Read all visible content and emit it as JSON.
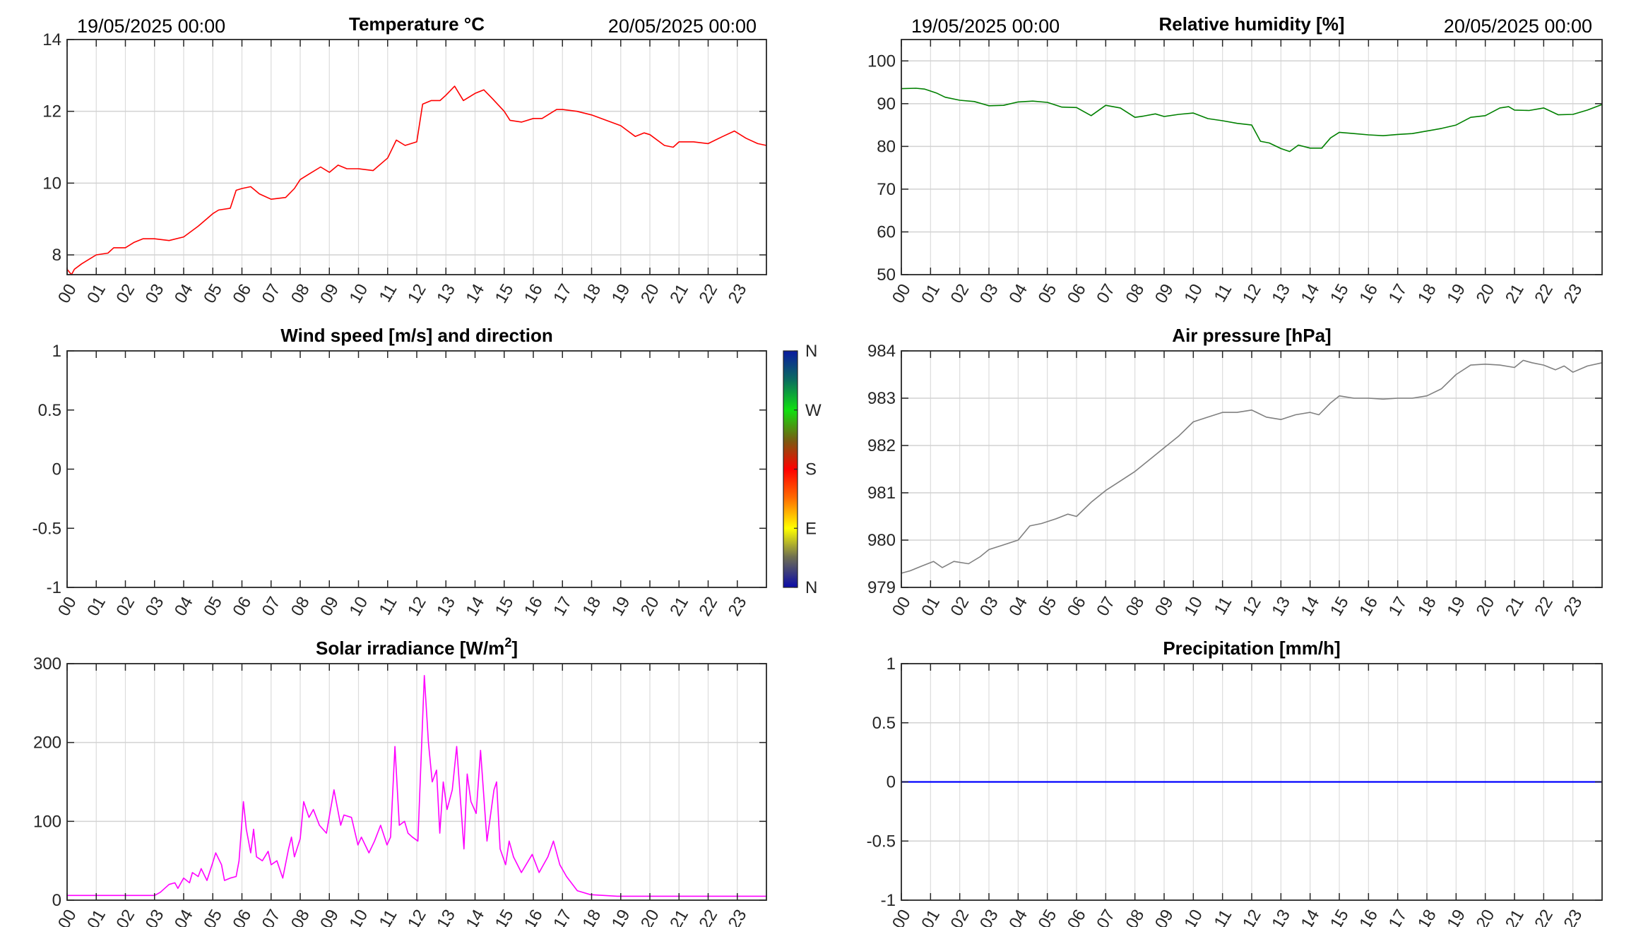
{
  "hour_labels": [
    "00",
    "01",
    "02",
    "03",
    "04",
    "05",
    "06",
    "07",
    "08",
    "09",
    "10",
    "11",
    "12",
    "13",
    "14",
    "15",
    "16",
    "17",
    "18",
    "19",
    "20",
    "21",
    "22",
    "23"
  ],
  "colors": {
    "axis": "#262626",
    "grid": "#dcdcdc",
    "temperature": "#ff0000",
    "humidity": "#008000",
    "pressure": "#808080",
    "solar": "#ff00ff",
    "precipitation": "#0000ff"
  },
  "colorbar": {
    "labels": [
      "N",
      "W",
      "S",
      "E",
      "N"
    ],
    "label_fractions_from_top": [
      0,
      0.25,
      0.5,
      0.75,
      1
    ]
  },
  "chart_data": [
    {
      "id": "temperature",
      "type": "line",
      "title": "Temperature °C",
      "title_sup": "",
      "title_end": "",
      "header_left": "19/05/2025 00:00",
      "header_right": "20/05/2025 00:00",
      "xlabel": "",
      "ylabel": "",
      "xlim": [
        0,
        24
      ],
      "ylim": [
        7.45,
        14
      ],
      "grid": true,
      "yticks": [
        8,
        10,
        12,
        14
      ],
      "ytick_labels": [
        "8",
        "10",
        "12",
        "14"
      ],
      "color": "#ff0000",
      "x": [
        0,
        0.15,
        0.25,
        0.5,
        1,
        1.4,
        1.6,
        2,
        2.3,
        2.6,
        3,
        3.5,
        4,
        4.5,
        5,
        5.2,
        5.6,
        5.8,
        6,
        6.3,
        6.6,
        7,
        7.5,
        7.8,
        8,
        8.3,
        8.7,
        9,
        9.3,
        9.6,
        10,
        10.5,
        11,
        11.3,
        11.6,
        12,
        12.2,
        12.5,
        12.8,
        13,
        13.3,
        13.6,
        14,
        14.3,
        14.6,
        15,
        15.2,
        15.6,
        16,
        16.3,
        16.8,
        17,
        17.5,
        18,
        18.5,
        19,
        19.5,
        19.8,
        20,
        20.5,
        20.8,
        21,
        21.5,
        22,
        22.5,
        22.9,
        23.3,
        23.7,
        24
      ],
      "y": [
        7.6,
        7.45,
        7.6,
        7.75,
        8.0,
        8.05,
        8.2,
        8.2,
        8.35,
        8.45,
        8.45,
        8.4,
        8.5,
        8.8,
        9.15,
        9.25,
        9.3,
        9.8,
        9.85,
        9.9,
        9.7,
        9.55,
        9.6,
        9.85,
        10.1,
        10.25,
        10.45,
        10.3,
        10.5,
        10.4,
        10.4,
        10.35,
        10.7,
        11.2,
        11.05,
        11.15,
        12.2,
        12.3,
        12.3,
        12.45,
        12.7,
        12.3,
        12.5,
        12.6,
        12.35,
        12.0,
        11.75,
        11.7,
        11.8,
        11.8,
        12.05,
        12.05,
        12.0,
        11.9,
        11.75,
        11.6,
        11.3,
        11.4,
        11.35,
        11.05,
        11.0,
        11.15,
        11.15,
        11.1,
        11.3,
        11.45,
        11.25,
        11.1,
        11.05
      ]
    },
    {
      "id": "humidity",
      "type": "line",
      "title": "Relative humidity [%]",
      "title_sup": "",
      "title_end": "",
      "header_left": "19/05/2025 00:00",
      "header_right": "20/05/2025 00:00",
      "xlabel": "",
      "ylabel": "",
      "xlim": [
        0,
        24
      ],
      "ylim": [
        50,
        105
      ],
      "grid": true,
      "yticks": [
        50,
        60,
        70,
        80,
        90,
        100
      ],
      "ytick_labels": [
        "50",
        "60",
        "70",
        "80",
        "90",
        "100"
      ],
      "color": "#008000",
      "x": [
        0,
        0.5,
        0.8,
        1.2,
        1.5,
        2,
        2.5,
        3,
        3.5,
        4,
        4.5,
        5,
        5.5,
        6,
        6.5,
        7,
        7.5,
        8,
        8.3,
        8.7,
        9,
        9.5,
        10,
        10.5,
        11,
        11.5,
        12,
        12.3,
        12.6,
        13,
        13.3,
        13.6,
        14,
        14.4,
        14.7,
        15,
        15.5,
        16,
        16.5,
        17,
        17.5,
        18,
        18.5,
        19,
        19.5,
        20,
        20.5,
        20.8,
        21,
        21.5,
        22,
        22.5,
        23,
        23.5,
        24
      ],
      "y": [
        93.5,
        93.6,
        93.4,
        92.5,
        91.5,
        90.8,
        90.5,
        89.5,
        89.6,
        90.4,
        90.6,
        90.3,
        89.2,
        89.1,
        87.2,
        89.6,
        89.0,
        86.8,
        87.1,
        87.6,
        87.0,
        87.5,
        87.8,
        86.5,
        86.0,
        85.4,
        85.0,
        81.2,
        80.8,
        79.5,
        78.8,
        80.3,
        79.6,
        79.6,
        82.0,
        83.3,
        83.0,
        82.7,
        82.5,
        82.8,
        83.0,
        83.6,
        84.2,
        85.0,
        86.8,
        87.2,
        89.0,
        89.3,
        88.5,
        88.4,
        89.0,
        87.4,
        87.5,
        88.5,
        89.8
      ]
    },
    {
      "id": "wind",
      "type": "line",
      "title": "Wind speed [m/s] and direction",
      "title_sup": "",
      "title_end": "",
      "header_left": "",
      "header_right": "",
      "xlabel": "",
      "ylabel": "",
      "xlim": [
        0,
        24
      ],
      "ylim": [
        -1,
        1
      ],
      "grid": false,
      "yticks": [
        -1,
        -0.5,
        0,
        0.5,
        1
      ],
      "ytick_labels": [
        "-1",
        "-0.5",
        "0",
        "0.5",
        "1"
      ],
      "color": "",
      "x": [],
      "y": []
    },
    {
      "id": "pressure",
      "type": "line",
      "title": "Air pressure [hPa]",
      "title_sup": "",
      "title_end": "",
      "header_left": "",
      "header_right": "",
      "xlabel": "",
      "ylabel": "",
      "xlim": [
        0,
        24
      ],
      "ylim": [
        979,
        984
      ],
      "grid": true,
      "yticks": [
        979,
        980,
        981,
        982,
        983,
        984
      ],
      "ytick_labels": [
        "979",
        "980",
        "981",
        "982",
        "983",
        "984"
      ],
      "color": "#808080",
      "x": [
        0,
        0.3,
        0.7,
        1.1,
        1.4,
        1.8,
        2.3,
        2.7,
        3,
        3.5,
        4,
        4.4,
        4.8,
        5.3,
        5.7,
        6,
        6.5,
        7,
        7.5,
        8,
        8.5,
        9,
        9.5,
        10,
        10.5,
        11,
        11.5,
        12,
        12.5,
        13,
        13.5,
        14,
        14.3,
        14.7,
        15,
        15.5,
        16,
        16.5,
        17,
        17.5,
        18,
        18.5,
        19,
        19.5,
        20,
        20.5,
        21,
        21.3,
        21.6,
        22,
        22.4,
        22.7,
        23,
        23.5,
        24
      ],
      "y": [
        979.3,
        979.35,
        979.45,
        979.55,
        979.42,
        979.55,
        979.5,
        979.65,
        979.8,
        979.9,
        980.0,
        980.3,
        980.35,
        980.45,
        980.55,
        980.5,
        980.8,
        981.05,
        981.25,
        981.45,
        981.7,
        981.95,
        982.2,
        982.5,
        982.6,
        982.7,
        982.7,
        982.75,
        982.6,
        982.55,
        982.65,
        982.7,
        982.65,
        982.9,
        983.05,
        983.0,
        983.0,
        982.98,
        983.0,
        983.0,
        983.05,
        983.2,
        983.5,
        983.7,
        983.72,
        983.7,
        983.65,
        983.8,
        983.75,
        983.7,
        983.6,
        983.68,
        983.55,
        983.68,
        983.75
      ]
    },
    {
      "id": "solar",
      "type": "line",
      "title": "Solar irradiance [W/m",
      "title_sup": "2",
      "title_end": "]",
      "header_left": "",
      "header_right": "",
      "xlabel": "",
      "ylabel": "",
      "xlim": [
        0,
        24
      ],
      "ylim": [
        0,
        300
      ],
      "grid": true,
      "yticks": [
        0,
        100,
        200,
        300
      ],
      "ytick_labels": [
        "0",
        "100",
        "200",
        "300"
      ],
      "color": "#ff00ff",
      "x": [
        0,
        3.0,
        3.2,
        3.5,
        3.7,
        3.8,
        4.0,
        4.2,
        4.3,
        4.5,
        4.6,
        4.8,
        5.0,
        5.1,
        5.3,
        5.4,
        5.6,
        5.8,
        5.9,
        6.05,
        6.15,
        6.3,
        6.4,
        6.5,
        6.7,
        6.9,
        7.0,
        7.2,
        7.4,
        7.6,
        7.7,
        7.8,
        8.0,
        8.12,
        8.3,
        8.45,
        8.66,
        8.9,
        9.16,
        9.39,
        9.5,
        9.76,
        9.98,
        10.1,
        10.36,
        10.55,
        10.76,
        10.98,
        11.1,
        11.25,
        11.4,
        11.58,
        11.7,
        11.85,
        12.04,
        12.26,
        12.4,
        12.53,
        12.68,
        12.79,
        12.91,
        13.04,
        13.22,
        13.37,
        13.62,
        13.73,
        13.86,
        14.04,
        14.19,
        14.41,
        14.65,
        14.74,
        14.86,
        15.05,
        15.17,
        15.32,
        15.59,
        15.96,
        16.2,
        16.5,
        16.69,
        16.91,
        17.14,
        17.51,
        17.96,
        18.88,
        24
      ],
      "y": [
        6,
        6,
        10,
        20,
        22,
        15,
        28,
        22,
        35,
        30,
        40,
        25,
        48,
        60,
        45,
        25,
        28,
        30,
        50,
        125,
        90,
        60,
        90,
        55,
        50,
        62,
        45,
        50,
        28,
        65,
        80,
        55,
        78,
        125,
        105,
        115,
        95,
        85,
        140,
        95,
        108,
        105,
        70,
        80,
        60,
        75,
        95,
        70,
        80,
        195,
        95,
        100,
        85,
        80,
        75,
        285,
        200,
        150,
        165,
        85,
        150,
        115,
        140,
        195,
        65,
        160,
        125,
        110,
        190,
        75,
        140,
        150,
        65,
        45,
        75,
        55,
        35,
        58,
        35,
        55,
        75,
        45,
        30,
        12,
        7,
        5,
        5
      ]
    },
    {
      "id": "precipitation",
      "type": "line",
      "title": "Precipitation [mm/h]",
      "title_sup": "",
      "title_end": "",
      "header_left": "",
      "header_right": "",
      "xlabel": "",
      "ylabel": "",
      "xlim": [
        0,
        24
      ],
      "ylim": [
        -1,
        1
      ],
      "grid": true,
      "yticks": [
        -1,
        -0.5,
        0,
        0.5,
        1
      ],
      "ytick_labels": [
        "-1",
        "-0.5",
        "0",
        "0.5",
        "1"
      ],
      "color": "#0000ff",
      "x": [
        0,
        24
      ],
      "y": [
        0,
        0
      ]
    }
  ]
}
